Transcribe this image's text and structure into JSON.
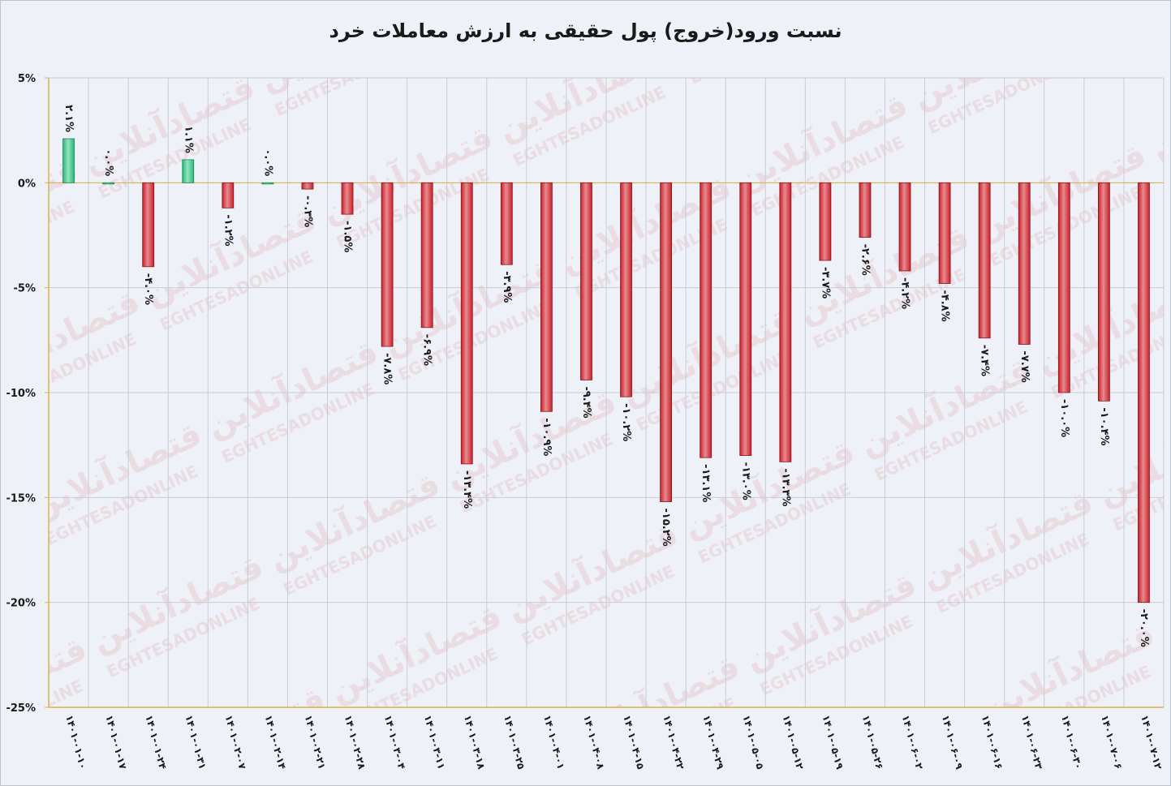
{
  "chart_data": {
    "type": "bar",
    "title": "نسبت ورود(خروج) پول حقیقی به ارزش معاملات خرد",
    "xlabel": "",
    "ylabel": "",
    "ylim": [
      -25,
      5
    ],
    "yticks": [
      5,
      0,
      -5,
      -10,
      -15,
      -20,
      -25
    ],
    "ytick_labels": [
      "5%",
      "0%",
      "-5%",
      "-10%",
      "-15%",
      "-20%",
      "-25%"
    ],
    "grid": true,
    "categories": [
      "۱۴۰۱-۰۱-۱۰",
      "۱۴۰۱-۰۱-۱۷",
      "۱۴۰۱-۰۱-۲۴",
      "۱۴۰۱-۰۱-۳۱",
      "۱۴۰۱-۰۲-۰۷",
      "۱۴۰۱-۰۲-۱۴",
      "۱۴۰۱-۰۲-۲۱",
      "۱۴۰۱-۰۲-۲۸",
      "۱۴۰۱-۰۳-۰۴",
      "۱۴۰۱-۰۳-۱۱",
      "۱۴۰۱-۰۳-۱۸",
      "۱۴۰۱-۰۳-۲۵",
      "۱۴۰۱-۰۴-۰۱",
      "۱۴۰۱-۰۴-۰۸",
      "۱۴۰۱-۰۴-۱۵",
      "۱۴۰۱-۰۴-۲۲",
      "۱۴۰۱-۰۴-۲۹",
      "۱۴۰۱-۰۵-۰۵",
      "۱۴۰۱-۰۵-۱۲",
      "۱۴۰۱-۰۵-۱۹",
      "۱۴۰۱-۰۵-۲۶",
      "۱۴۰۱-۰۶-۰۲",
      "۱۴۰۱-۰۶-۰۹",
      "۱۴۰۱-۰۶-۱۶",
      "۱۴۰۱-۰۶-۲۳",
      "۱۴۰۱-۰۶-۳۰",
      "۱۴۰۱-۰۷-۰۶",
      "۱۴۰۱-۰۷-۱۲"
    ],
    "values": [
      2.1,
      0.0,
      -4.0,
      1.1,
      -1.2,
      0.0,
      -0.3,
      -1.5,
      -7.8,
      -6.9,
      -13.4,
      -3.9,
      -10.9,
      -9.4,
      -10.2,
      -15.2,
      -13.1,
      -13.0,
      -13.3,
      -3.7,
      -2.6,
      -4.2,
      -4.8,
      -7.4,
      -7.7,
      -10.0,
      -10.4,
      -20.0
    ],
    "data_labels": [
      "۲.۱%",
      "۰.۰%",
      "-۴.۰%",
      "۱.۱%",
      "-۱.۲%",
      "۰.۰%",
      "-۰.۳%",
      "-۱.۵%",
      "-۷.۸%",
      "-۶.۹%",
      "-۱۳.۴%",
      "-۳.۹%",
      "-۱۰.۹%",
      "-۹.۴%",
      "-۱۰.۲%",
      "-۱۵.۲%",
      "-۱۳.۱%",
      "-۱۳.۰%",
      "-۱۳.۳%",
      "-۳.۷%",
      "-۲.۶%",
      "-۴.۲%",
      "-۴.۸%",
      "-۷.۴%",
      "-۷.۷%",
      "-۱۰.۰%",
      "-۱۰.۴%",
      "-۲۰.۰%"
    ],
    "colors": {
      "positive": "#2fb37a",
      "positive_light": "#8fe7bf",
      "negative": "#c8202a",
      "negative_light": "#e88a8f",
      "axis": "#d9b24a",
      "grid": "#c9ccd6",
      "label": "#1a1a1a"
    }
  },
  "watermark": {
    "text_fa": "اقتصادآنلاین",
    "text_en": "EGHTESADONLINE"
  }
}
